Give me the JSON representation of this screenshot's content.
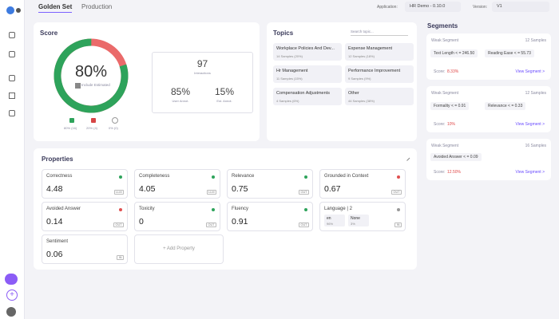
{
  "topbar": {
    "tabs": [
      "Golden Set",
      "Production"
    ],
    "application_label": "Application:",
    "application": "HR Demo - 0.10.0",
    "version_label": "Version:",
    "version": "V1"
  },
  "score": {
    "title": "Score",
    "value": "80%",
    "include_estimated": "Include Estimated",
    "legend": [
      "80% (16)",
      "20% (4)",
      "0% (0)"
    ],
    "stats": {
      "interactions": "97",
      "interactions_label": "Interactions",
      "user": "85%",
      "user_label": "User Annot.",
      "estimated": "15%",
      "estimated_label": "Est. Annot."
    }
  },
  "topics": {
    "title": "Topics",
    "search_placeholder": "Search topic...",
    "items": [
      {
        "name": "Workplace Policies And Dev...",
        "samples": "14 Samples (20%)"
      },
      {
        "name": "Expense Management",
        "samples": "12 Samples (18%)"
      },
      {
        "name": "Hr Management",
        "samples": "11 Samples (15%)"
      },
      {
        "name": "Performance Improvement",
        "samples": "9 Samples (9%)"
      },
      {
        "name": "Compensation Adjustments",
        "samples": "4 Samples (6%)"
      },
      {
        "name": "Other",
        "samples": "44 Samples (38%)"
      }
    ]
  },
  "segments": {
    "title": "Segments",
    "items": [
      {
        "label": "Weak Segment",
        "samples": "12 Samples",
        "rules": [
          "Text Length < = 246.50",
          "Reading Ease < = 55.73"
        ],
        "score_label": "Score:",
        "score": "8.33%",
        "link": "View Segment >"
      },
      {
        "label": "Weak Segment",
        "samples": "12 Samples",
        "rules": [
          "Formality < = 0.91",
          "Relevance < = 0.33"
        ],
        "score_label": "Score:",
        "score": "10%",
        "link": "View Segment >"
      },
      {
        "label": "Weak Segment",
        "samples": "16 Samples",
        "rules": [
          "Avoided Answer < = 0.09"
        ],
        "score_label": "Score:",
        "score": "12.50%",
        "link": "View Segment >"
      }
    ]
  },
  "properties": {
    "title": "Properties",
    "add": "+ Add Property",
    "items": [
      {
        "name": "Correctness",
        "value": "4.48",
        "badge": "LLM",
        "status": "green"
      },
      {
        "name": "Completeness",
        "value": "4.05",
        "badge": "LLM",
        "status": "green"
      },
      {
        "name": "Relevance",
        "value": "0.75",
        "badge": "OUT",
        "status": "green"
      },
      {
        "name": "Grounded in Context",
        "value": "0.67",
        "badge": "OUT",
        "status": "red"
      },
      {
        "name": "Avoided Answer",
        "value": "0.14",
        "badge": "OUT",
        "status": "red"
      },
      {
        "name": "Toxicity",
        "value": "0",
        "badge": "OUT",
        "status": "green"
      },
      {
        "name": "Fluency",
        "value": "0.91",
        "badge": "OUT",
        "status": "green"
      },
      {
        "name": "Language | 2",
        "badge": "IN",
        "status": "gray",
        "parts": [
          {
            "label": "en",
            "share": "96%"
          },
          {
            "label": "None",
            "share": "3%"
          }
        ]
      },
      {
        "name": "Sentiment",
        "value": "0.06",
        "badge": "IN"
      }
    ]
  }
}
